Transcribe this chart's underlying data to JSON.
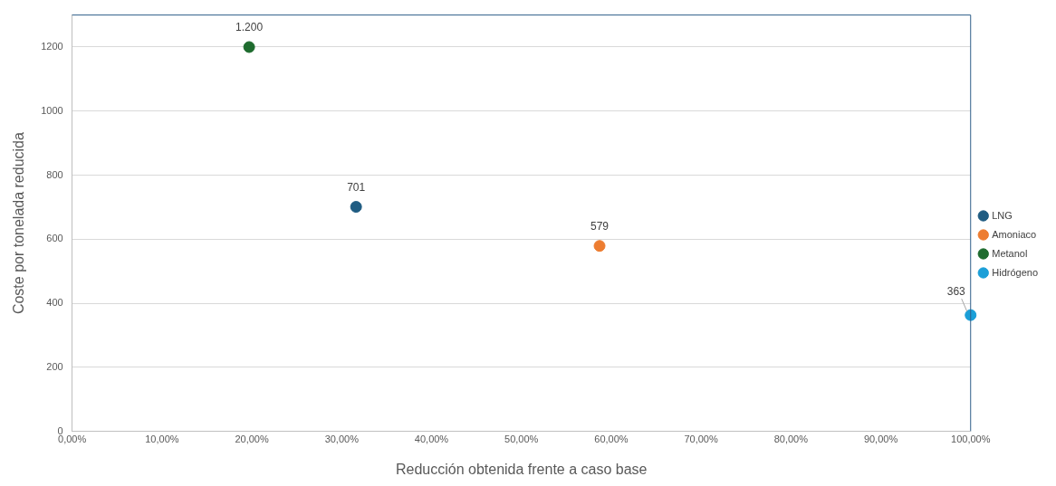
{
  "chart_data": {
    "type": "scatter",
    "xlabel": "Reducción obtenida frente a caso base",
    "ylabel": "Coste por tonelada reducida",
    "xlim": [
      0,
      100
    ],
    "xticks": [
      {
        "value": 0,
        "label": "0,00%"
      },
      {
        "value": 10,
        "label": "10,00%"
      },
      {
        "value": 20,
        "label": "20,00%"
      },
      {
        "value": 30,
        "label": "30,00%"
      },
      {
        "value": 40,
        "label": "40,00%"
      },
      {
        "value": 50,
        "label": "50,00%"
      },
      {
        "value": 60,
        "label": "60,00%"
      },
      {
        "value": 70,
        "label": "70,00%"
      },
      {
        "value": 80,
        "label": "80,00%"
      },
      {
        "value": 90,
        "label": "90,00%"
      },
      {
        "value": 100,
        "label": "100,00%"
      }
    ],
    "ylim": [
      0,
      1300
    ],
    "yticks": [
      0,
      200,
      400,
      600,
      800,
      1000,
      1200
    ],
    "grid": "y",
    "legend": "right",
    "marker": "circle",
    "series": [
      {
        "name": "LNG",
        "color": "#1f5c82",
        "x": [
          31.6
        ],
        "values": [
          701
        ],
        "value_labels": [
          "701"
        ]
      },
      {
        "name": "Amoniaco",
        "color": "#ed7d31",
        "x": [
          58.7
        ],
        "values": [
          579
        ],
        "value_labels": [
          "579"
        ]
      },
      {
        "name": "Metanol",
        "color": "#1e6b2e",
        "x": [
          19.7
        ],
        "values": [
          1200
        ],
        "value_labels": [
          "1.200"
        ]
      },
      {
        "name": "Hidrógeno",
        "color": "#1b9fd8",
        "x": [
          100
        ],
        "values": [
          363
        ],
        "value_labels": [
          "363"
        ]
      }
    ]
  }
}
